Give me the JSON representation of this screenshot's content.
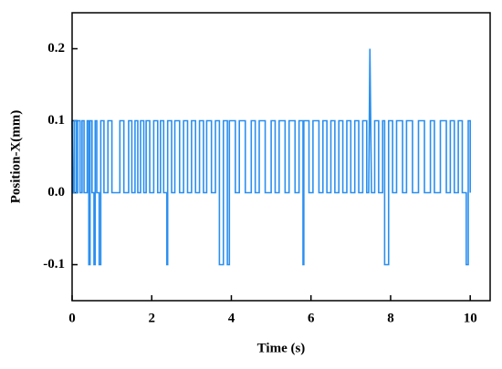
{
  "chart_data": {
    "type": "line",
    "x_label": "Time (s)",
    "y_label": "Position-X(mm)",
    "xlim": [
      0,
      10.5
    ],
    "ylim": [
      -0.15,
      0.25
    ],
    "xticks": [
      0,
      2,
      4,
      6,
      8,
      10
    ],
    "yticks": [
      {
        "value": -0.1,
        "label": "-0.1"
      },
      {
        "value": 0,
        "label": "0.0"
      },
      0.1,
      0.2
    ],
    "series": [
      {
        "color": "#2a8ff0",
        "x": [
          0,
          0.02,
          0.05,
          0.05,
          0.1,
          0.1,
          0.14,
          0.14,
          0.2,
          0.2,
          0.25,
          0.25,
          0.3,
          0.3,
          0.38,
          0.38,
          0.42,
          0.42,
          0.45,
          0.45,
          0.5,
          0.5,
          0.55,
          0.55,
          0.58,
          0.58,
          0.62,
          0.62,
          0.68,
          0.68,
          0.72,
          0.72,
          0.8,
          0.8,
          0.9,
          0.9,
          1,
          1,
          1.2,
          1.2,
          1.3,
          1.3,
          1.42,
          1.42,
          1.5,
          1.5,
          1.58,
          1.58,
          1.65,
          1.65,
          1.72,
          1.72,
          1.8,
          1.8,
          1.86,
          1.86,
          1.95,
          1.95,
          2.05,
          2.05,
          2.15,
          2.15,
          2.22,
          2.22,
          2.3,
          2.3,
          2.38,
          2.38,
          2.4,
          2.4,
          2.5,
          2.5,
          2.58,
          2.58,
          2.7,
          2.7,
          2.8,
          2.8,
          2.9,
          2.9,
          3,
          3,
          3.1,
          3.1,
          3.2,
          3.2,
          3.3,
          3.3,
          3.38,
          3.38,
          3.5,
          3.5,
          3.6,
          3.6,
          3.7,
          3.7,
          3.8,
          3.8,
          3.9,
          3.9,
          3.95,
          3.95,
          4.1,
          4.1,
          4.2,
          4.2,
          4.35,
          4.35,
          4.5,
          4.5,
          4.6,
          4.6,
          4.7,
          4.7,
          4.85,
          4.85,
          5,
          5,
          5.1,
          5.1,
          5.2,
          5.2,
          5.35,
          5.35,
          5.45,
          5.45,
          5.6,
          5.6,
          5.7,
          5.7,
          5.8,
          5.8,
          5.82,
          5.82,
          5.95,
          5.95,
          6.05,
          6.05,
          6.2,
          6.2,
          6.3,
          6.3,
          6.4,
          6.4,
          6.5,
          6.5,
          6.6,
          6.6,
          6.7,
          6.7,
          6.8,
          6.8,
          6.9,
          6.9,
          7,
          7,
          7.1,
          7.1,
          7.2,
          7.2,
          7.3,
          7.3,
          7.4,
          7.4,
          7.45,
          7.48,
          7.52,
          7.6,
          7.6,
          7.7,
          7.7,
          7.8,
          7.8,
          7.85,
          7.85,
          7.95,
          7.95,
          8.05,
          8.05,
          8.15,
          8.15,
          8.3,
          8.3,
          8.4,
          8.4,
          8.55,
          8.55,
          8.7,
          8.7,
          8.85,
          8.85,
          9,
          9,
          9.1,
          9.1,
          9.25,
          9.25,
          9.4,
          9.4,
          9.5,
          9.5,
          9.6,
          9.6,
          9.7,
          9.7,
          9.8,
          9.8,
          9.9,
          9.9,
          9.95,
          9.95,
          10,
          10
        ],
        "values": [
          0.1,
          0,
          0,
          0.1,
          0.1,
          0,
          0,
          0.1,
          0.1,
          0,
          0,
          0.1,
          0.1,
          0,
          0,
          0.1,
          0.1,
          -0.1,
          -0.1,
          0.1,
          0.1,
          0,
          0,
          -0.1,
          -0.1,
          0.1,
          0.1,
          0,
          0,
          -0.1,
          -0.1,
          0.1,
          0.1,
          0,
          0,
          0.1,
          0.1,
          0,
          0,
          0.1,
          0.1,
          0,
          0,
          0.1,
          0.1,
          0,
          0,
          0.1,
          0.1,
          0,
          0,
          0.1,
          0.1,
          0,
          0,
          0.1,
          0.1,
          0,
          0,
          0.1,
          0.1,
          0,
          0,
          0.1,
          0.1,
          0,
          0,
          -0.1,
          -0.1,
          0.1,
          0.1,
          0,
          0,
          0.1,
          0.1,
          0,
          0,
          0.1,
          0.1,
          0,
          0,
          0.1,
          0.1,
          0,
          0,
          0.1,
          0.1,
          0,
          0,
          0.1,
          0.1,
          0,
          0,
          0.1,
          0.1,
          -0.1,
          -0.1,
          0.1,
          0.1,
          -0.1,
          -0.1,
          0.1,
          0.1,
          0,
          0,
          0.1,
          0.1,
          0,
          0,
          0.1,
          0.1,
          0,
          0,
          0.1,
          0.1,
          0,
          0,
          0.1,
          0.1,
          0,
          0,
          0.1,
          0.1,
          0,
          0,
          0.1,
          0.1,
          0,
          0,
          0.1,
          0.1,
          -0.1,
          -0.1,
          0.1,
          0.1,
          0,
          0,
          0.1,
          0.1,
          0,
          0,
          0.1,
          0.1,
          0,
          0,
          0.1,
          0.1,
          0,
          0,
          0.1,
          0.1,
          0,
          0,
          0.1,
          0.1,
          0,
          0,
          0.1,
          0.1,
          0,
          0,
          0.1,
          0.1,
          0,
          0,
          0.2,
          0,
          0,
          0.1,
          0.1,
          0,
          0,
          0.1,
          0.1,
          -0.1,
          -0.1,
          0.1,
          0.1,
          0,
          0,
          0.1,
          0.1,
          0,
          0,
          0.1,
          0.1,
          0,
          0,
          0.1,
          0.1,
          0,
          0,
          0.1,
          0.1,
          0,
          0,
          0.1,
          0.1,
          0,
          0,
          0.1,
          0.1,
          0,
          0,
          0.1,
          0.1,
          0,
          0,
          -0.1,
          -0.1,
          0.1,
          0.1,
          0
        ]
      }
    ]
  }
}
